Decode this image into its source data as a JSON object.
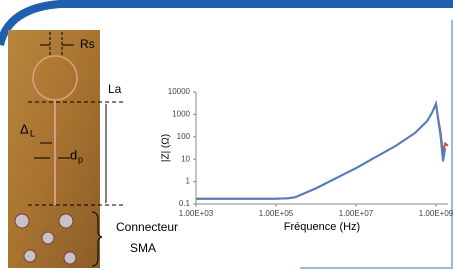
{
  "labels": {
    "rs": "Rs",
    "la": "La",
    "delta": "Δ",
    "delta_sub": "L",
    "dp": "d",
    "dp_sub": "p",
    "connector_1": "Connecteur",
    "connector_2": "SMA"
  },
  "chart_data": {
    "type": "line",
    "xlabel": "Fréquence (Hz)",
    "ylabel": "|Z| (Ω)",
    "log_x": true,
    "log_y": true,
    "x": [
      1000,
      10000,
      100000,
      200000,
      300000,
      1000000,
      10000000,
      100000000,
      300000000,
      600000000,
      800000000,
      1000000000,
      1100000000,
      1300000000,
      1500000000,
      1700000000,
      2000000000
    ],
    "series": [
      {
        "color": "#c0504d",
        "values": [
          0.17,
          0.17,
          0.17,
          0.18,
          0.2,
          0.5,
          4,
          40,
          150,
          500,
          1200,
          3000,
          900,
          150,
          20,
          50,
          40
        ]
      },
      {
        "color": "#4f81bd",
        "values": [
          0.17,
          0.17,
          0.17,
          0.18,
          0.2,
          0.5,
          4,
          40,
          150,
          500,
          1200,
          3000,
          800,
          100,
          8,
          30,
          null
        ]
      }
    ],
    "xlim": [
      1000,
      2000000000
    ],
    "ylim": [
      0.1,
      10000
    ],
    "xticks": [
      {
        "value": 1000,
        "label": "1.00E+03"
      },
      {
        "value": 100000,
        "label": "1.00E+05"
      },
      {
        "value": 10000000,
        "label": "1.00E+07"
      },
      {
        "value": 1000000000,
        "label": "1.00E+09"
      }
    ],
    "yticks": [
      0.1,
      1,
      10,
      100,
      1000,
      10000
    ]
  }
}
